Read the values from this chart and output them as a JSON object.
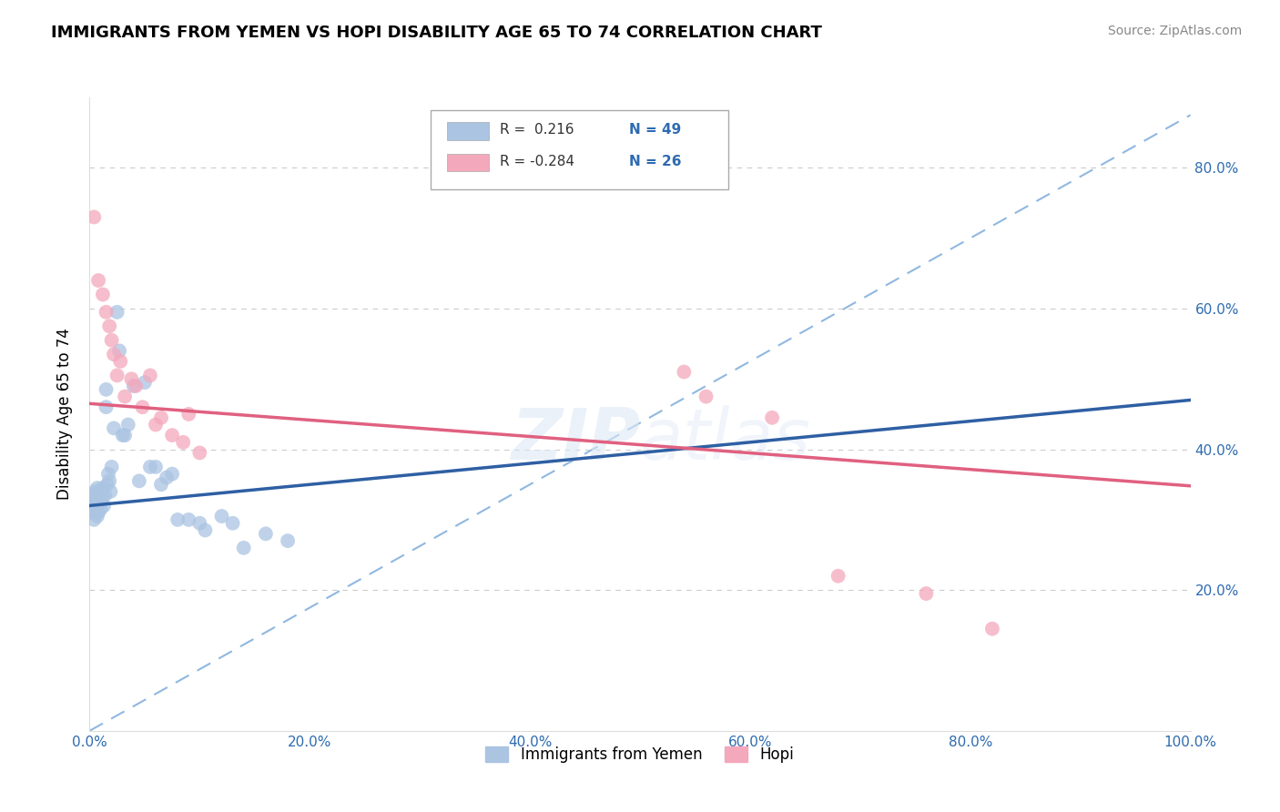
{
  "title": "IMMIGRANTS FROM YEMEN VS HOPI DISABILITY AGE 65 TO 74 CORRELATION CHART",
  "source": "Source: ZipAtlas.com",
  "ylabel": "Disability Age 65 to 74",
  "xlim": [
    0.0,
    1.0
  ],
  "ylim": [
    0.0,
    0.9
  ],
  "xtick_vals": [
    0.0,
    0.2,
    0.4,
    0.6,
    0.8,
    1.0
  ],
  "xtick_labels": [
    "0.0%",
    "20.0%",
    "40.0%",
    "60.0%",
    "80.0%",
    "100.0%"
  ],
  "ytick_vals": [
    0.2,
    0.4,
    0.6,
    0.8
  ],
  "ytick_labels": [
    "20.0%",
    "40.0%",
    "60.0%",
    "80.0%"
  ],
  "legend_label1": "Immigrants from Yemen",
  "legend_label2": "Hopi",
  "color_blue": "#aac4e2",
  "color_pink": "#f4a8bc",
  "line_color_blue": "#2e5fa3",
  "line_color_pink": "#e06080",
  "dashed_line_color": "#90b8e0",
  "blue_scatter_x": [
    0.003,
    0.003,
    0.004,
    0.004,
    0.005,
    0.005,
    0.006,
    0.006,
    0.007,
    0.007,
    0.008,
    0.008,
    0.009,
    0.01,
    0.01,
    0.011,
    0.012,
    0.013,
    0.014,
    0.015,
    0.015,
    0.016,
    0.017,
    0.018,
    0.019,
    0.02,
    0.022,
    0.025,
    0.027,
    0.03,
    0.032,
    0.035,
    0.04,
    0.045,
    0.05,
    0.055,
    0.06,
    0.065,
    0.07,
    0.075,
    0.08,
    0.09,
    0.1,
    0.105,
    0.12,
    0.13,
    0.14,
    0.16,
    0.18
  ],
  "blue_scatter_y": [
    0.335,
    0.31,
    0.325,
    0.3,
    0.34,
    0.315,
    0.33,
    0.32,
    0.345,
    0.305,
    0.335,
    0.31,
    0.325,
    0.34,
    0.315,
    0.33,
    0.345,
    0.32,
    0.335,
    0.485,
    0.46,
    0.35,
    0.365,
    0.355,
    0.34,
    0.375,
    0.43,
    0.595,
    0.54,
    0.42,
    0.42,
    0.435,
    0.49,
    0.355,
    0.495,
    0.375,
    0.375,
    0.35,
    0.36,
    0.365,
    0.3,
    0.3,
    0.295,
    0.285,
    0.305,
    0.295,
    0.26,
    0.28,
    0.27
  ],
  "pink_scatter_x": [
    0.004,
    0.008,
    0.012,
    0.015,
    0.018,
    0.02,
    0.022,
    0.025,
    0.028,
    0.032,
    0.038,
    0.042,
    0.048,
    0.055,
    0.06,
    0.065,
    0.075,
    0.085,
    0.09,
    0.1,
    0.54,
    0.56,
    0.62,
    0.68,
    0.76,
    0.82
  ],
  "pink_scatter_y": [
    0.73,
    0.64,
    0.62,
    0.595,
    0.575,
    0.555,
    0.535,
    0.505,
    0.525,
    0.475,
    0.5,
    0.49,
    0.46,
    0.505,
    0.435,
    0.445,
    0.42,
    0.41,
    0.45,
    0.395,
    0.51,
    0.475,
    0.445,
    0.22,
    0.195,
    0.145
  ],
  "blue_line_x0": 0.0,
  "blue_line_y0": 0.32,
  "blue_line_x1": 1.0,
  "blue_line_y1": 0.47,
  "pink_line_x0": 0.0,
  "pink_line_y0": 0.465,
  "pink_line_x1": 1.0,
  "pink_line_y1": 0.348,
  "dash_line_x0": 0.0,
  "dash_line_y0": 0.0,
  "dash_line_x1": 1.0,
  "dash_line_y1": 0.875
}
